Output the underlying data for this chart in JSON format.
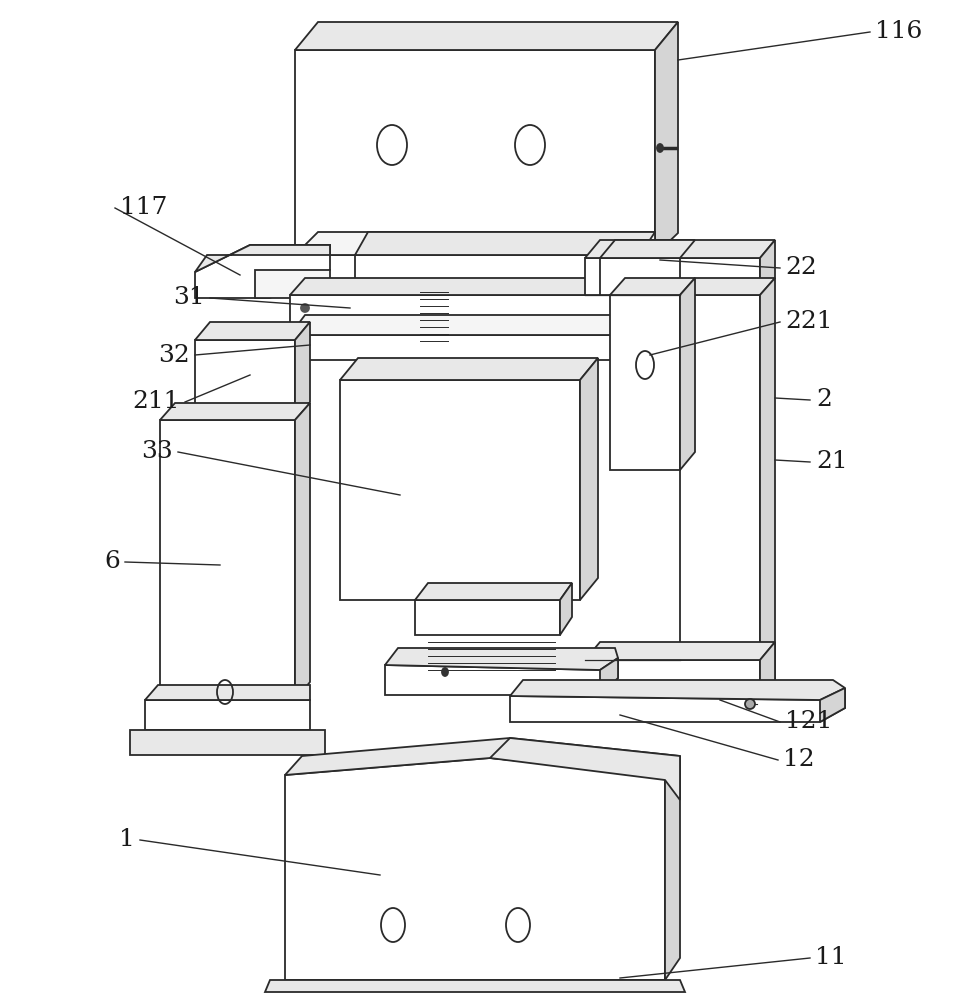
{
  "bg_color": "#ffffff",
  "lc": "#2a2a2a",
  "fc_white": "#ffffff",
  "fc_light": "#f5f5f5",
  "fc_mid": "#e8e8e8",
  "fc_dark": "#d5d5d5",
  "lw": 1.3,
  "label_fs": 18
}
